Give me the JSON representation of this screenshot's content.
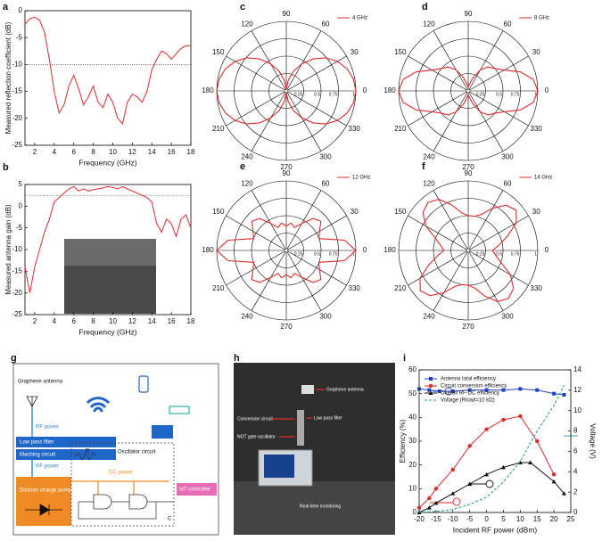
{
  "chart_data": [
    {
      "panel": "a",
      "type": "line",
      "xlabel": "Frequency (GHz)",
      "ylabel": "Measured reflection coefficient (dB)",
      "x": [
        1,
        1.5,
        2,
        2.5,
        3,
        3.5,
        4,
        4.5,
        5,
        5.5,
        6,
        6.5,
        7,
        7.5,
        8,
        8.5,
        9,
        9.5,
        10,
        10.5,
        11,
        11.5,
        12,
        12.5,
        13,
        13.5,
        14,
        14.5,
        15,
        15.5,
        16,
        16.5,
        17,
        17.5,
        18
      ],
      "series": [
        {
          "color": "#e02a2a",
          "values": [
            -2.5,
            -1.5,
            -1.2,
            -1.8,
            -4,
            -9,
            -15,
            -19,
            -17.5,
            -14,
            -12,
            -14.5,
            -17.5,
            -16,
            -14,
            -17,
            -18,
            -15.5,
            -17,
            -20,
            -21,
            -17,
            -15.5,
            -16,
            -17,
            -15,
            -11,
            -9,
            -7.5,
            -8,
            -9,
            -8,
            -7,
            -6.5,
            -6.5
          ]
        }
      ],
      "xlim": [
        1,
        18
      ],
      "ylim": [
        -25,
        0
      ],
      "xticks": [
        2,
        4,
        6,
        8,
        10,
        12,
        14,
        16,
        18
      ],
      "yticks": [
        -25,
        -20,
        -15,
        -10,
        -5,
        0
      ],
      "hline": -10
    },
    {
      "panel": "b",
      "type": "line",
      "xlabel": "Frequency (GHz)",
      "ylabel": "Measured antenna gain (dB)",
      "x": [
        1,
        1.5,
        2,
        2.5,
        3,
        3.5,
        4,
        4.5,
        5,
        5.5,
        6,
        6.5,
        7,
        7.5,
        8,
        8.5,
        9,
        9.5,
        10,
        10.5,
        11,
        11.5,
        12,
        12.5,
        13,
        13.5,
        14,
        14.5,
        15,
        15.5,
        16,
        16.5,
        17,
        17.5,
        18
      ],
      "series": [
        {
          "color": "#e02a2a",
          "values": [
            -14,
            -20,
            -14,
            -10,
            -6,
            -3,
            1,
            2,
            3,
            4,
            4.5,
            3.5,
            4,
            3.5,
            3.8,
            4,
            4.2,
            4.5,
            4.3,
            4,
            4.5,
            4,
            3.5,
            3,
            2.5,
            2,
            1,
            -4,
            -6,
            -3,
            -4,
            -7,
            -3,
            -2,
            -5
          ]
        }
      ],
      "xlim": [
        1,
        18
      ],
      "ylim": [
        -25,
        5
      ],
      "xticks": [
        2,
        4,
        6,
        8,
        10,
        12,
        14,
        16,
        18
      ],
      "yticks": [
        -25,
        -20,
        -15,
        -10,
        -5,
        0,
        5
      ],
      "hline": 2.5
    },
    {
      "panel": "c",
      "type": "polar",
      "theta": [
        0,
        10,
        20,
        30,
        40,
        50,
        60,
        70,
        80,
        90,
        100,
        110,
        120,
        130,
        140,
        150,
        160,
        170,
        180,
        190,
        200,
        210,
        220,
        230,
        240,
        250,
        260,
        270,
        280,
        290,
        300,
        310,
        320,
        330,
        340,
        350
      ],
      "rlim": [
        0,
        1
      ],
      "rticks": [
        0.25,
        0.5,
        0.75,
        1
      ],
      "thetaticks": [
        0,
        30,
        60,
        90,
        120,
        150,
        180,
        210,
        240,
        270,
        300,
        330
      ],
      "series": [
        {
          "name": "4 GHz",
          "color": "#e02a2a",
          "values": [
            1,
            0.98,
            0.93,
            0.85,
            0.74,
            0.6,
            0.45,
            0.3,
            0.15,
            0.02,
            0.15,
            0.3,
            0.45,
            0.6,
            0.74,
            0.85,
            0.93,
            0.98,
            1,
            0.98,
            0.93,
            0.85,
            0.74,
            0.6,
            0.45,
            0.3,
            0.15,
            0.02,
            0.15,
            0.3,
            0.45,
            0.6,
            0.74,
            0.85,
            0.93,
            0.98
          ]
        }
      ]
    },
    {
      "panel": "d",
      "type": "polar",
      "theta": [
        0,
        10,
        20,
        30,
        40,
        50,
        60,
        70,
        80,
        90,
        100,
        110,
        120,
        130,
        140,
        150,
        160,
        170,
        180,
        190,
        200,
        210,
        220,
        230,
        240,
        250,
        260,
        270,
        280,
        290,
        300,
        310,
        320,
        330,
        340,
        350
      ],
      "rlim": [
        0,
        1
      ],
      "rticks": [
        0.25,
        0.5,
        0.75,
        1
      ],
      "thetaticks": [
        0,
        30,
        60,
        90,
        120,
        150,
        180,
        210,
        240,
        270,
        300,
        330
      ],
      "series": [
        {
          "name": "8 GHz",
          "color": "#e02a2a",
          "values": [
            1,
            0.95,
            0.8,
            0.6,
            0.5,
            0.45,
            0.35,
            0.2,
            0.1,
            0.05,
            0.1,
            0.2,
            0.35,
            0.45,
            0.5,
            0.6,
            0.8,
            0.95,
            1,
            0.95,
            0.8,
            0.6,
            0.5,
            0.45,
            0.35,
            0.2,
            0.1,
            0.05,
            0.1,
            0.2,
            0.35,
            0.45,
            0.5,
            0.6,
            0.8,
            0.95
          ]
        }
      ]
    },
    {
      "panel": "e",
      "type": "polar",
      "theta": [
        0,
        10,
        20,
        30,
        40,
        50,
        60,
        70,
        80,
        90,
        100,
        110,
        120,
        130,
        140,
        150,
        160,
        170,
        180,
        190,
        200,
        210,
        220,
        230,
        240,
        250,
        260,
        270,
        280,
        290,
        300,
        310,
        320,
        330,
        340,
        350
      ],
      "rlim": [
        0,
        1
      ],
      "rticks": [
        0.25,
        0.5,
        0.75,
        1
      ],
      "thetaticks": [
        0,
        30,
        60,
        90,
        120,
        150,
        180,
        210,
        240,
        270,
        300,
        330
      ],
      "series": [
        {
          "name": "12 GHz",
          "color": "#e02a2a",
          "values": [
            1,
            0.85,
            0.5,
            0.55,
            0.65,
            0.6,
            0.45,
            0.35,
            0.4,
            0.35,
            0.4,
            0.35,
            0.45,
            0.6,
            0.65,
            0.55,
            0.5,
            0.85,
            1,
            0.85,
            0.5,
            0.55,
            0.65,
            0.6,
            0.45,
            0.35,
            0.4,
            0.35,
            0.4,
            0.35,
            0.45,
            0.6,
            0.65,
            0.55,
            0.5,
            0.85
          ]
        }
      ]
    },
    {
      "panel": "f",
      "type": "polar",
      "theta": [
        0,
        10,
        20,
        30,
        40,
        50,
        60,
        70,
        80,
        90,
        100,
        110,
        120,
        130,
        140,
        150,
        160,
        170,
        180,
        190,
        200,
        210,
        220,
        230,
        240,
        250,
        260,
        270,
        280,
        290,
        300,
        310,
        320,
        330,
        340,
        350
      ],
      "rlim": [
        0,
        1
      ],
      "rticks": [
        0.25,
        0.5,
        0.75,
        1
      ],
      "thetaticks": [
        0,
        30,
        60,
        90,
        120,
        150,
        180,
        210,
        240,
        270,
        300,
        330
      ],
      "series": [
        {
          "name": "14 GHz",
          "color": "#e02a2a",
          "values": [
            0.35,
            0.45,
            0.6,
            0.8,
            0.9,
            0.85,
            0.7,
            0.55,
            0.5,
            0.5,
            0.55,
            0.7,
            0.85,
            0.9,
            0.85,
            0.7,
            0.5,
            0.4,
            0.35,
            0.45,
            0.6,
            0.8,
            0.9,
            0.85,
            0.7,
            0.55,
            0.5,
            0.5,
            0.55,
            0.7,
            0.85,
            0.9,
            0.85,
            0.7,
            0.5,
            0.4
          ]
        }
      ]
    },
    {
      "panel": "i",
      "type": "line",
      "xlabel": "Incident RF power (dBm)",
      "ylabel": "Efficiency (%)",
      "y2label": "Voltage (V)",
      "xlim": [
        -20,
        25
      ],
      "ylim": [
        0,
        60
      ],
      "y2lim": [
        0,
        14
      ],
      "xticks": [
        -20,
        -15,
        -10,
        -5,
        0,
        5,
        10,
        15,
        20,
        25
      ],
      "yticks": [
        0,
        10,
        20,
        30,
        40,
        50,
        60
      ],
      "y2ticks": [
        0,
        2,
        4,
        6,
        8,
        10,
        12,
        14
      ],
      "series": [
        {
          "name": "Antenna total efficiency",
          "color": "#1f3fbf",
          "marker": "square",
          "x": [
            -20,
            -17,
            -14,
            -10,
            -5,
            0,
            5,
            10,
            15,
            20,
            23
          ],
          "values": [
            52,
            51.5,
            51,
            51,
            51.5,
            51.5,
            51.5,
            52,
            51.5,
            50,
            49.5
          ]
        },
        {
          "name": "Circuit conversion efficiency",
          "color": "#e02a2a",
          "marker": "circle",
          "x": [
            -20,
            -17,
            -15,
            -10,
            -5,
            0,
            5,
            10,
            15,
            20
          ],
          "values": [
            2,
            6,
            10,
            18,
            28,
            35,
            39,
            40.5,
            30,
            16
          ]
        },
        {
          "name": "Overall RF-DC efficiency",
          "color": "#111111",
          "marker": "triangle",
          "x": [
            -20,
            -17,
            -15,
            -10,
            -5,
            0,
            5,
            10,
            13,
            20,
            23
          ],
          "values": [
            0,
            2,
            4,
            8,
            12,
            16,
            19,
            21,
            21,
            13,
            8
          ]
        },
        {
          "name": "Voltage (Rload=10 kΩ)",
          "color": "#1a9a8a",
          "dash": true,
          "axis": "y2",
          "x": [
            -20,
            -15,
            -10,
            -5,
            0,
            5,
            10,
            15,
            20,
            23
          ],
          "values": [
            0,
            0.1,
            0.3,
            0.8,
            1.5,
            3,
            5,
            8,
            10.5,
            12.5
          ]
        }
      ]
    }
  ],
  "diagram": {
    "panel": "g",
    "antenna": "Graphene antenna",
    "rf_power_1": "RF power",
    "filter": "Low pass filter",
    "matching": "Maching circuit",
    "rf_power_2": "RF power",
    "pump": "Dickson charge pump",
    "oscillator": "Oscillator circuit",
    "resistor": "R",
    "dc_power": "DC power",
    "capacitor": "C",
    "controller": "IoT controller"
  },
  "photo": {
    "panel": "h",
    "labels": [
      "Graphene antenna",
      "Conversion circuit",
      "Low pass filter",
      "NOT gate oscillator",
      "Real-time monitoring"
    ]
  }
}
